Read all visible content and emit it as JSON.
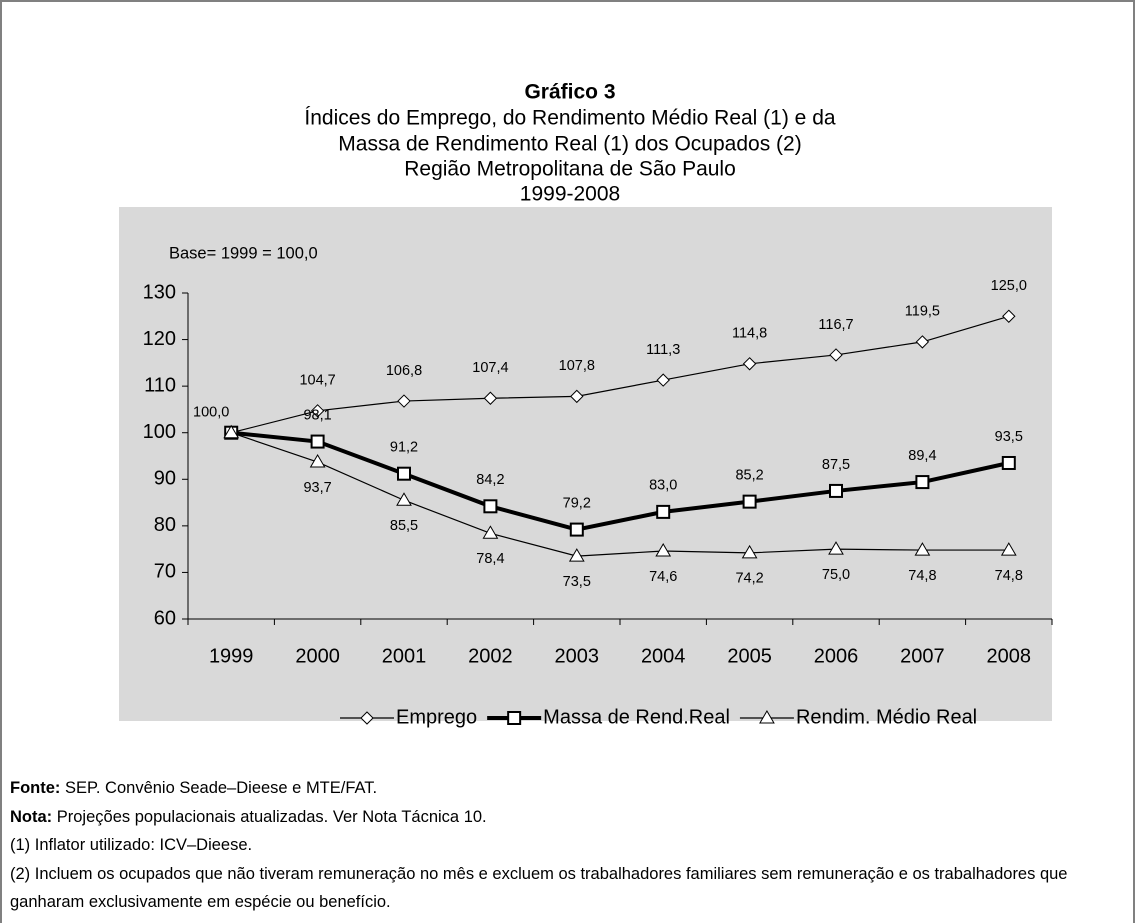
{
  "chart_data": {
    "type": "line",
    "title": "Gráfico 3",
    "subtitle": [
      "Índices do Emprego, do Rendimento Médio Real (1) e da",
      "Massa de Rendimento Real (1) dos Ocupados (2)",
      "Região Metropolitana de São Paulo",
      "1999-2008"
    ],
    "annotation": "Base= 1999 = 100,0",
    "categories": [
      "1999",
      "2000",
      "2001",
      "2002",
      "2003",
      "2004",
      "2005",
      "2006",
      "2007",
      "2008"
    ],
    "series": [
      {
        "name": "Emprego",
        "color": "#000000",
        "marker": "diamond",
        "values": [
          100,
          104.7,
          106.8,
          107.4,
          107.8,
          111.3,
          114.8,
          116.7,
          119.5,
          125.0
        ],
        "value_labels": [
          "100,0",
          "104,7",
          "106,8",
          "107,4",
          "107,8",
          "111,3",
          "114,8",
          "116,7",
          "119,5",
          "125,0"
        ]
      },
      {
        "name": "Massa de Rend.Real",
        "color": "#000000",
        "marker": "square",
        "values": [
          100,
          98.1,
          91.2,
          84.2,
          79.2,
          83.0,
          85.2,
          87.5,
          89.4,
          93.5
        ],
        "value_labels": [
          null,
          "98,1",
          "91,2",
          "84,2",
          "79,2",
          "83,0",
          "85,2",
          "87,5",
          "89,4",
          "93,5"
        ]
      },
      {
        "name": "Rendim. Médio Real",
        "color": "#000000",
        "marker": "triangle",
        "values": [
          100,
          93.7,
          85.5,
          78.4,
          73.5,
          74.6,
          74.2,
          75.0,
          74.8,
          74.8
        ],
        "value_labels": [
          null,
          "93,7",
          "85,5",
          "78,4",
          "73,5",
          "74,6",
          "74,2",
          "75,0",
          "74,8",
          "74,8"
        ]
      }
    ],
    "ylim": [
      60,
      130
    ],
    "yticks": [
      60,
      70,
      80,
      90,
      100,
      110,
      120,
      130
    ],
    "grid": false,
    "legend": "bottom"
  },
  "notes": [
    {
      "label": "Fonte:",
      "text": " SEP. Convênio Seade–Dieese e MTE/FAT."
    },
    {
      "label": "Nota:",
      "text": " Projeções populacionais atualizadas. Ver Nota Tácnica 10."
    },
    {
      "text": "(1) Inflator utilizado: ICV–Dieese."
    },
    {
      "text": "(2) Incluem os ocupados que não tiveram remuneração no mês e excluem os trabalhadores familiares sem remuneração e os trabalhadores que ganharam exclusivamente em espécie ou benefício."
    }
  ]
}
